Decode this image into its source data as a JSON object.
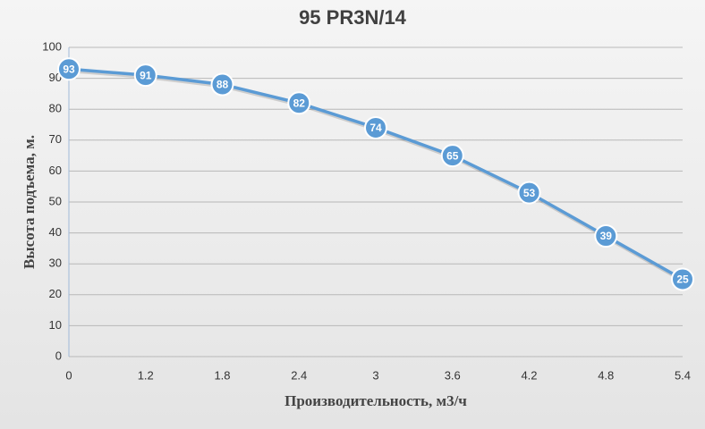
{
  "chart_data": {
    "type": "line",
    "title": "95 PR3N/14",
    "x_label": "Производительность, м3/ч",
    "y_label": "Высота подъема, м.",
    "categories": [
      "0",
      "1.2",
      "1.8",
      "2.4",
      "3",
      "3.6",
      "4.2",
      "4.8",
      "5.4"
    ],
    "values": [
      93,
      91,
      88,
      82,
      74,
      65,
      53,
      39,
      25
    ],
    "color": "#5b9bd5",
    "ylim": [
      0,
      100
    ],
    "yticks": [
      0,
      10,
      20,
      30,
      40,
      50,
      60,
      70,
      80,
      90,
      100
    ],
    "grid": true,
    "data_labels": true
  }
}
